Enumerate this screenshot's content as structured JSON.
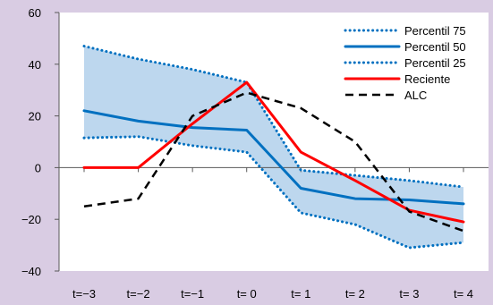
{
  "chart_data": {
    "type": "line",
    "title": "",
    "xlabel": "",
    "ylabel": "",
    "categories": [
      "t=−3",
      "t=−2",
      "t=−1",
      "t= 0",
      "t= 1",
      "t= 2",
      "t= 3",
      "t= 4"
    ],
    "ylim": [
      -40,
      60
    ],
    "yticks": [
      60,
      40,
      20,
      0,
      -20,
      -40
    ],
    "ytick_labels": [
      "60",
      "40",
      "20",
      "0",
      "−20",
      "−40"
    ],
    "grid": false,
    "legend_position": "top-right",
    "band": {
      "between": [
        "Percentil 75",
        "Percentil 25"
      ],
      "color": "#bdd7ee"
    },
    "series": [
      {
        "name": "Percentil 75",
        "style": "dotted",
        "color": "#0070c0",
        "values": [
          47,
          42,
          38,
          33,
          -1,
          -3,
          -5,
          -7.5
        ]
      },
      {
        "name": "Percentil 50",
        "style": "solid",
        "color": "#0070c0",
        "values": [
          22,
          18,
          15.5,
          14.5,
          -8,
          -12,
          -12.5,
          -14
        ]
      },
      {
        "name": "Percentil 25",
        "style": "dotted",
        "color": "#0070c0",
        "values": [
          11.5,
          12,
          8.5,
          6,
          -17.5,
          -22,
          -31,
          -29
        ]
      },
      {
        "name": "Reciente",
        "style": "solid",
        "color": "#ff0000",
        "values": [
          0,
          0,
          17,
          33,
          6,
          -5,
          -16.5,
          -21
        ]
      },
      {
        "name": "ALC",
        "style": "dashed",
        "color": "#000000",
        "values": [
          -15,
          -12,
          20,
          29,
          23,
          10,
          -17,
          -24.5
        ]
      }
    ]
  }
}
